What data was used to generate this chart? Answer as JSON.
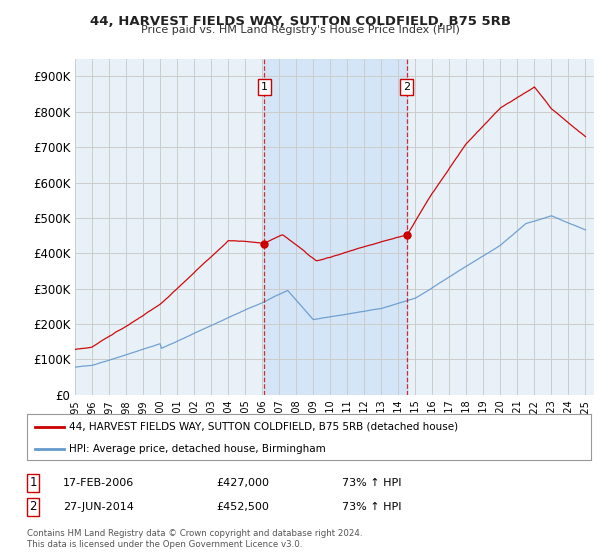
{
  "title": "44, HARVEST FIELDS WAY, SUTTON COLDFIELD, B75 5RB",
  "subtitle": "Price paid vs. HM Land Registry's House Price Index (HPI)",
  "ylabel_ticks": [
    "£0",
    "£100K",
    "£200K",
    "£300K",
    "£400K",
    "£500K",
    "£600K",
    "£700K",
    "£800K",
    "£900K"
  ],
  "ytick_values": [
    0,
    100000,
    200000,
    300000,
    400000,
    500000,
    600000,
    700000,
    800000,
    900000
  ],
  "ylim": [
    0,
    950000
  ],
  "xlim_start": 1995.0,
  "xlim_end": 2025.5,
  "sale1_date": 2006.12,
  "sale1_price": 427000,
  "sale1_label": "1",
  "sale1_text": "17-FEB-2006",
  "sale1_amount": "£427,000",
  "sale1_hpi": "73% ↑ HPI",
  "sale2_date": 2014.49,
  "sale2_price": 452500,
  "sale2_label": "2",
  "sale2_text": "27-JUN-2014",
  "sale2_amount": "£452,500",
  "sale2_hpi": "73% ↑ HPI",
  "red_line_color": "#cc0000",
  "blue_line_color": "#6699cc",
  "shade_color": "#d0e4f7",
  "grid_color": "#cccccc",
  "background_color": "#ffffff",
  "plot_bg_color": "#e8f0f8",
  "legend_label_red": "44, HARVEST FIELDS WAY, SUTTON COLDFIELD, B75 5RB (detached house)",
  "legend_label_blue": "HPI: Average price, detached house, Birmingham",
  "footer_text": "Contains HM Land Registry data © Crown copyright and database right 2024.\nThis data is licensed under the Open Government Licence v3.0.",
  "xtick_years": [
    1995,
    1996,
    1997,
    1998,
    1999,
    2000,
    2001,
    2002,
    2003,
    2004,
    2005,
    2006,
    2007,
    2008,
    2009,
    2010,
    2011,
    2012,
    2013,
    2014,
    2015,
    2016,
    2017,
    2018,
    2019,
    2020,
    2021,
    2022,
    2023,
    2024,
    2025
  ]
}
